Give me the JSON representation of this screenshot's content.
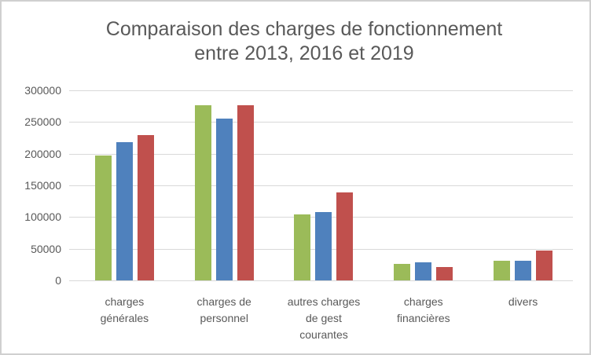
{
  "chart": {
    "title": "Comparaison des charges de fonctionnement\nentre 2013, 2016 et 2019"
  },
  "chart_data": {
    "type": "bar",
    "title": "Comparaison des charges de fonctionnement entre 2013, 2016 et 2019",
    "categories": [
      "charges générales",
      "charges de personnel",
      "autres charges de gest courantes",
      "charges financières",
      "divers"
    ],
    "category_labels_wrapped": [
      "charges\ngénérales",
      "charges de\npersonnel",
      "autres charges\nde gest\ncourantes",
      "charges\nfinancières",
      "divers"
    ],
    "series": [
      {
        "name": "2013",
        "color": "#9BBB59",
        "values": [
          197000,
          277000,
          104000,
          26000,
          31000
        ]
      },
      {
        "name": "2016",
        "color": "#4F81BD",
        "values": [
          218000,
          255000,
          108000,
          29000,
          31000
        ]
      },
      {
        "name": "2019",
        "color": "#C0504D",
        "values": [
          229000,
          277000,
          139000,
          21000,
          47000
        ]
      }
    ],
    "xlabel": "",
    "ylabel": "",
    "ylim": [
      0,
      300000
    ],
    "ytick_step": 50000,
    "ytick_labels": [
      "0",
      "50000",
      "100000",
      "150000",
      "200000",
      "250000",
      "300000"
    ],
    "grid": true,
    "legend_position": "none",
    "style": {
      "title_color": "#595959",
      "axis_text_color": "#595959",
      "gridline_color": "#D9D9D9",
      "border_color": "#D0D0D0",
      "background": "#FFFFFF"
    }
  }
}
